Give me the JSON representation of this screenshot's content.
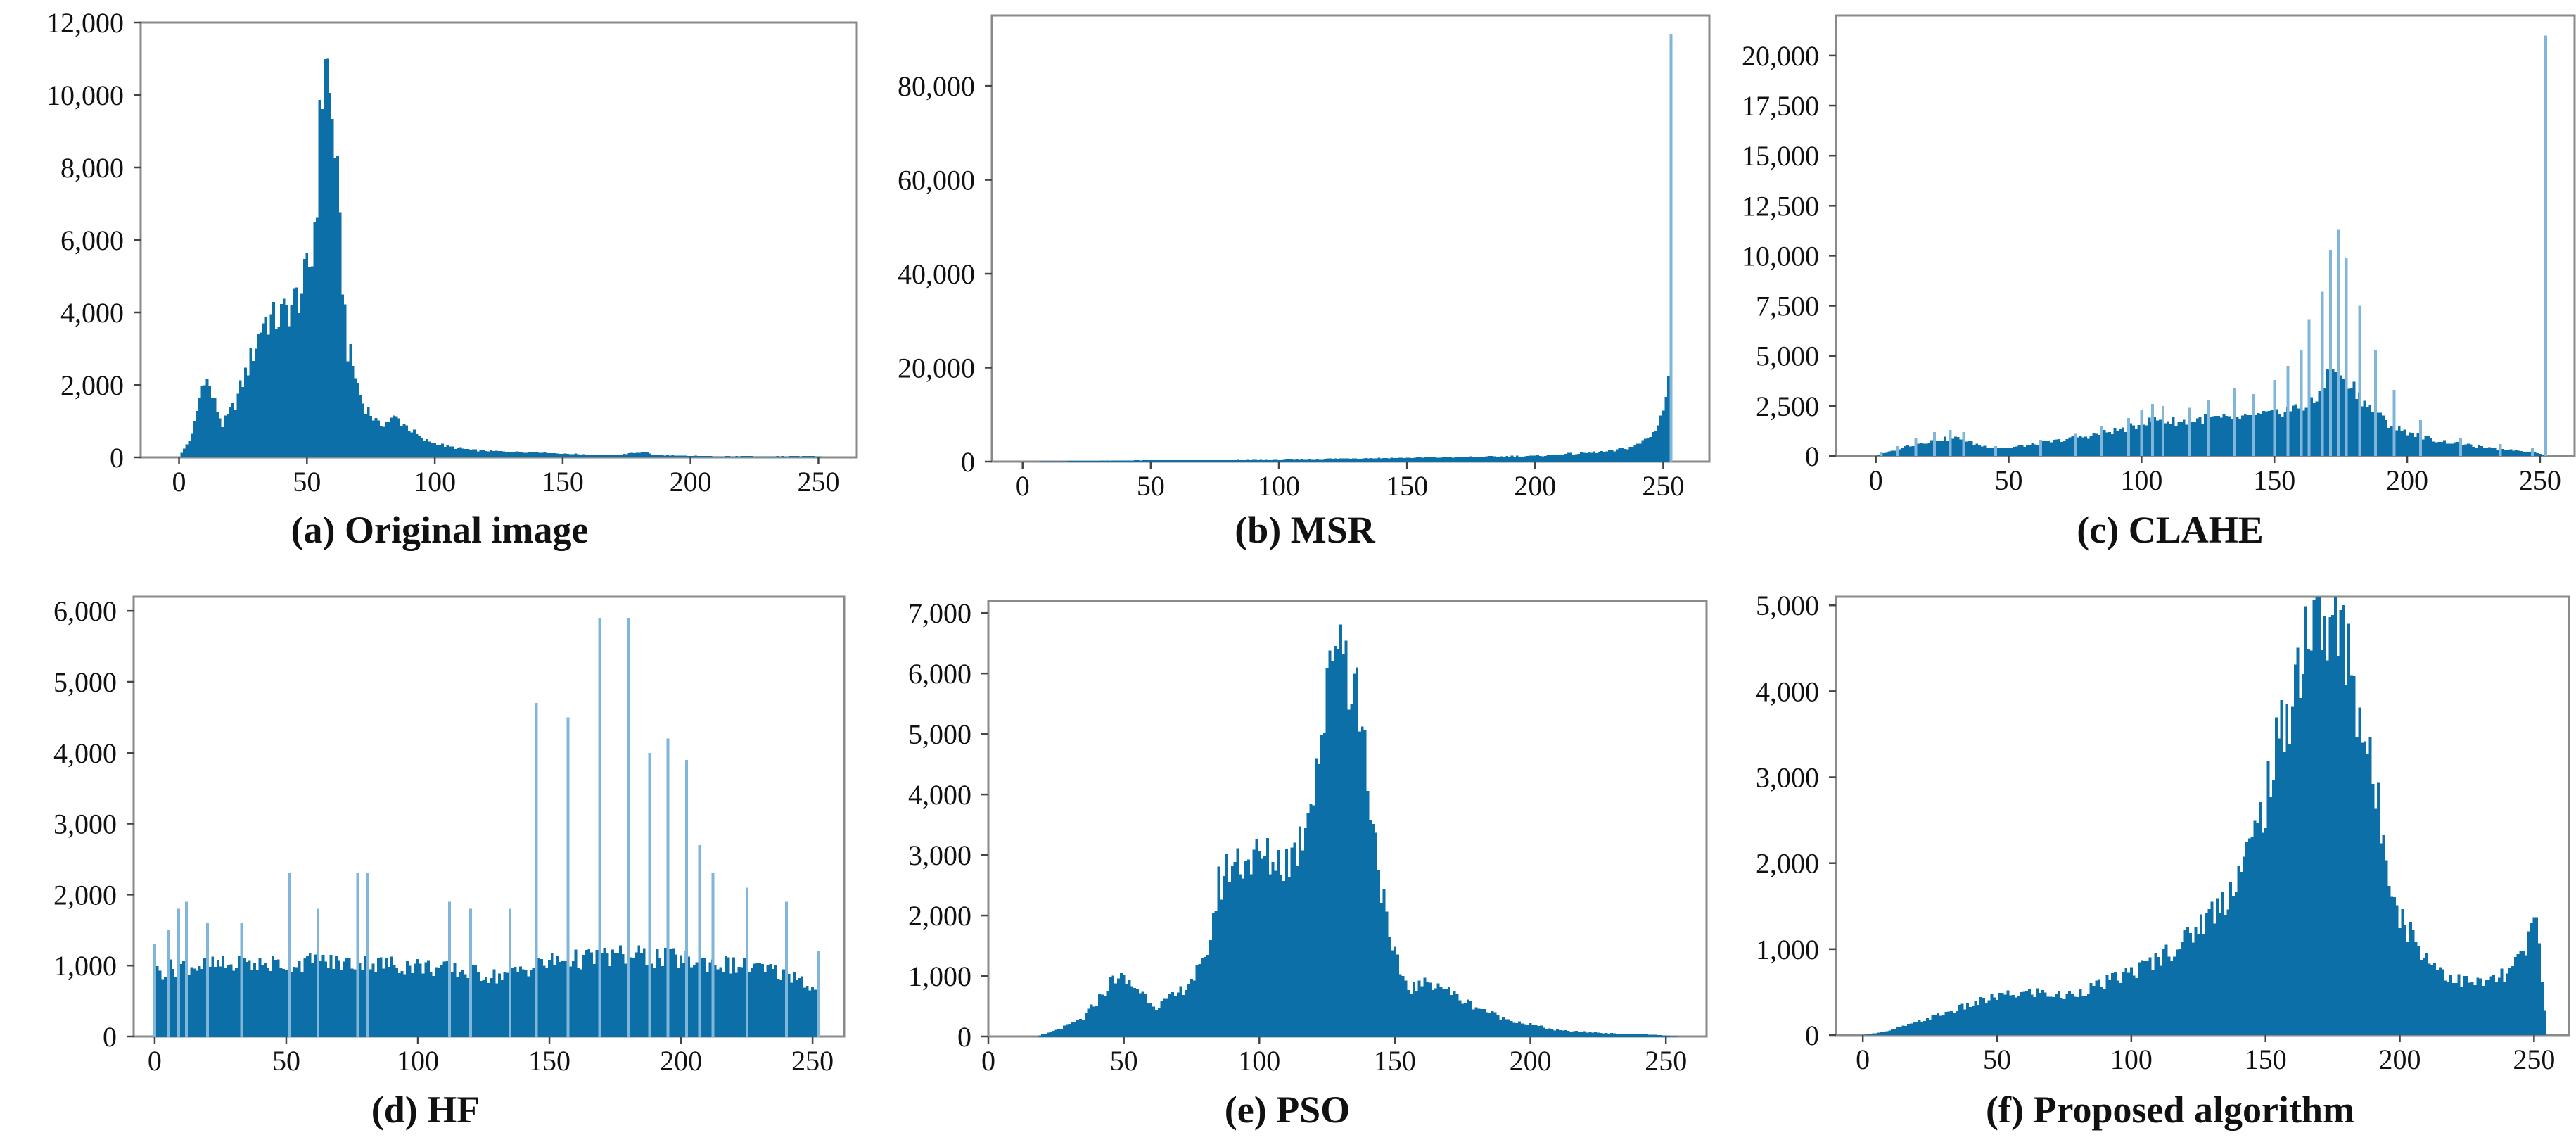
{
  "figure": {
    "bar_color": "#0d6fa8",
    "spike_color": "#7fb6d9"
  },
  "chart_data": [
    {
      "id": "a",
      "type": "bar",
      "title": "(a) Original image",
      "xlabel": "",
      "ylabel": "",
      "xlim": [
        -15,
        265
      ],
      "ylim": [
        0,
        12000
      ],
      "xticks": [
        0,
        50,
        100,
        150,
        200,
        250
      ],
      "xtick_labels": [
        "0",
        "50",
        "100",
        "150",
        "200",
        "250"
      ],
      "yticks": [
        0,
        2000,
        4000,
        6000,
        8000,
        10000,
        12000
      ],
      "ytick_labels": [
        "0",
        "2,000",
        "4,000",
        "6,000",
        "8,000",
        "10,000",
        "12,000"
      ],
      "series": [
        {
          "name": "histogram",
          "profile": [
            [
              0,
              0
            ],
            [
              5,
              600
            ],
            [
              10,
              2300
            ],
            [
              13,
              1700
            ],
            [
              17,
              900
            ],
            [
              22,
              1500
            ],
            [
              28,
              2700
            ],
            [
              33,
              3800
            ],
            [
              38,
              3800
            ],
            [
              43,
              4100
            ],
            [
              48,
              4600
            ],
            [
              52,
              5500
            ],
            [
              54,
              7500
            ],
            [
              56,
              10200
            ],
            [
              57,
              11500
            ],
            [
              59,
              9800
            ],
            [
              61,
              8800
            ],
            [
              63,
              6000
            ],
            [
              66,
              3000
            ],
            [
              72,
              1500
            ],
            [
              78,
              900
            ],
            [
              85,
              1100
            ],
            [
              90,
              800
            ],
            [
              95,
              500
            ],
            [
              105,
              300
            ],
            [
              115,
              200
            ],
            [
              130,
              150
            ],
            [
              140,
              150
            ],
            [
              150,
              100
            ],
            [
              170,
              60
            ],
            [
              182,
              150
            ],
            [
              186,
              60
            ],
            [
              200,
              40
            ],
            [
              230,
              30
            ],
            [
              248,
              40
            ],
            [
              253,
              20
            ],
            [
              255,
              0
            ]
          ],
          "spikes": []
        }
      ]
    },
    {
      "id": "b",
      "type": "bar",
      "title": "(b) MSR",
      "xlabel": "",
      "ylabel": "",
      "xlim": [
        -12,
        268
      ],
      "ylim": [
        0,
        95000
      ],
      "xticks": [
        0,
        50,
        100,
        150,
        200,
        250
      ],
      "xtick_labels": [
        "0",
        "50",
        "100",
        "150",
        "200",
        "250"
      ],
      "yticks": [
        0,
        20000,
        40000,
        60000,
        80000
      ],
      "ytick_labels": [
        "0",
        "20,000",
        "40,000",
        "60,000",
        "80,000"
      ],
      "series": [
        {
          "name": "histogram",
          "profile": [
            [
              0,
              0
            ],
            [
              50,
              300
            ],
            [
              100,
              500
            ],
            [
              150,
              800
            ],
            [
              200,
              1200
            ],
            [
              230,
              2200
            ],
            [
              240,
              3500
            ],
            [
              246,
              6000
            ],
            [
              250,
              11000
            ],
            [
              252,
              17000
            ],
            [
              253,
              0
            ],
            [
              255,
              0
            ]
          ],
          "spikes": [
            [
              253,
              91000
            ]
          ]
        }
      ]
    },
    {
      "id": "c",
      "type": "bar",
      "title": "(c) CLAHE",
      "xlabel": "",
      "ylabel": "",
      "xlim": [
        -15,
        263
      ],
      "ylim": [
        0,
        22000
      ],
      "xticks": [
        0,
        50,
        100,
        150,
        200,
        250
      ],
      "xtick_labels": [
        "0",
        "50",
        "100",
        "150",
        "200",
        "250"
      ],
      "yticks": [
        0,
        2500,
        5000,
        7500,
        10000,
        12500,
        15000,
        17500,
        20000
      ],
      "ytick_labels": [
        "0",
        "2,500",
        "5,000",
        "7,500",
        "10,000",
        "12,500",
        "15,000",
        "17,500",
        "20,000"
      ],
      "series": [
        {
          "name": "histogram",
          "profile": [
            [
              0,
              0
            ],
            [
              5,
              200
            ],
            [
              12,
              500
            ],
            [
              22,
              800
            ],
            [
              30,
              900
            ],
            [
              40,
              500
            ],
            [
              50,
              400
            ],
            [
              65,
              700
            ],
            [
              80,
              1000
            ],
            [
              95,
              1400
            ],
            [
              105,
              1800
            ],
            [
              115,
              1700
            ],
            [
              125,
              1900
            ],
            [
              135,
              1800
            ],
            [
              145,
              2000
            ],
            [
              155,
              2300
            ],
            [
              165,
              2600
            ],
            [
              172,
              4500
            ],
            [
              178,
              3800
            ],
            [
              185,
              2500
            ],
            [
              195,
              1400
            ],
            [
              210,
              800
            ],
            [
              230,
              400
            ],
            [
              248,
              200
            ],
            [
              252,
              0
            ],
            [
              255,
              0
            ]
          ],
          "spikes": [
            [
              2,
              200
            ],
            [
              8,
              500
            ],
            [
              15,
              900
            ],
            [
              22,
              1200
            ],
            [
              28,
              1300
            ],
            [
              33,
              1200
            ],
            [
              45,
              500
            ],
            [
              62,
              800
            ],
            [
              75,
              1100
            ],
            [
              85,
              1500
            ],
            [
              95,
              1900
            ],
            [
              100,
              2300
            ],
            [
              104,
              2600
            ],
            [
              108,
              2500
            ],
            [
              118,
              2400
            ],
            [
              125,
              2800
            ],
            [
              135,
              3400
            ],
            [
              142,
              3100
            ],
            [
              150,
              3800
            ],
            [
              155,
              4500
            ],
            [
              160,
              5300
            ],
            [
              163,
              6800
            ],
            [
              168,
              8200
            ],
            [
              171,
              10300
            ],
            [
              174,
              11300
            ],
            [
              177,
              9900
            ],
            [
              182,
              7500
            ],
            [
              188,
              5300
            ],
            [
              195,
              3300
            ],
            [
              205,
              1800
            ],
            [
              220,
              900
            ],
            [
              235,
              600
            ],
            [
              247,
              400
            ],
            [
              252,
              21000
            ]
          ]
        }
      ]
    },
    {
      "id": "d",
      "type": "bar",
      "title": "(d) HF",
      "xlabel": "",
      "ylabel": "",
      "xlim": [
        -8,
        262
      ],
      "ylim": [
        0,
        6200
      ],
      "xticks": [
        0,
        50,
        100,
        150,
        200,
        250
      ],
      "xtick_labels": [
        "0",
        "50",
        "100",
        "150",
        "200",
        "250"
      ],
      "yticks": [
        0,
        1000,
        2000,
        3000,
        4000,
        5000,
        6000
      ],
      "ytick_labels": [
        "0",
        "1,000",
        "2,000",
        "3,000",
        "4,000",
        "5,000",
        "6,000"
      ],
      "series": [
        {
          "name": "histogram",
          "profile": [
            [
              0,
              900
            ],
            [
              10,
              1000
            ],
            [
              30,
              1000
            ],
            [
              60,
              1050
            ],
            [
              100,
              1000
            ],
            [
              130,
              850
            ],
            [
              150,
              1050
            ],
            [
              180,
              1150
            ],
            [
              210,
              1050
            ],
            [
              230,
              950
            ],
            [
              245,
              850
            ],
            [
              252,
              600
            ],
            [
              253,
              0
            ],
            [
              255,
              0
            ]
          ],
          "spikes": [
            [
              0,
              1300
            ],
            [
              5,
              1500
            ],
            [
              9,
              1800
            ],
            [
              12,
              1900
            ],
            [
              20,
              1600
            ],
            [
              33,
              1600
            ],
            [
              51,
              2300
            ],
            [
              62,
              1800
            ],
            [
              77,
              2300
            ],
            [
              81,
              2300
            ],
            [
              112,
              1900
            ],
            [
              120,
              1800
            ],
            [
              135,
              1800
            ],
            [
              145,
              4700
            ],
            [
              157,
              4500
            ],
            [
              169,
              5900
            ],
            [
              180,
              5900
            ],
            [
              188,
              4000
            ],
            [
              195,
              4200
            ],
            [
              202,
              3900
            ],
            [
              207,
              2700
            ],
            [
              212,
              2300
            ],
            [
              225,
              2100
            ],
            [
              240,
              1900
            ],
            [
              252,
              1200
            ]
          ]
        }
      ]
    },
    {
      "id": "e",
      "type": "bar",
      "title": "(e) PSO",
      "xlabel": "",
      "ylabel": "",
      "xlim": [
        0,
        265
      ],
      "ylim": [
        0,
        7200
      ],
      "xticks": [
        0,
        50,
        100,
        150,
        200,
        250
      ],
      "xtick_labels": [
        "0",
        "50",
        "100",
        "150",
        "200",
        "250"
      ],
      "yticks": [
        0,
        1000,
        2000,
        3000,
        4000,
        5000,
        6000,
        7000
      ],
      "ytick_labels": [
        "0",
        "1,000",
        "2,000",
        "3,000",
        "4,000",
        "5,000",
        "6,000",
        "7,000"
      ],
      "series": [
        {
          "name": "histogram",
          "profile": [
            [
              0,
              0
            ],
            [
              18,
              0
            ],
            [
              25,
              100
            ],
            [
              35,
              300
            ],
            [
              42,
              700
            ],
            [
              47,
              1000
            ],
            [
              55,
              800
            ],
            [
              62,
              500
            ],
            [
              70,
              700
            ],
            [
              80,
              1200
            ],
            [
              85,
              2500
            ],
            [
              90,
              2900
            ],
            [
              100,
              2950
            ],
            [
              110,
              2900
            ],
            [
              115,
              3200
            ],
            [
              120,
              4300
            ],
            [
              125,
              5500
            ],
            [
              128,
              6900
            ],
            [
              131,
              6600
            ],
            [
              134,
              6000
            ],
            [
              137,
              5500
            ],
            [
              142,
              3600
            ],
            [
              148,
              1500
            ],
            [
              155,
              800
            ],
            [
              165,
              900
            ],
            [
              175,
              600
            ],
            [
              190,
              300
            ],
            [
              210,
              100
            ],
            [
              230,
              50
            ],
            [
              245,
              30
            ],
            [
              255,
              0
            ]
          ],
          "spikes": []
        }
      ]
    },
    {
      "id": "f",
      "type": "bar",
      "title": "(f) Proposed algorithm",
      "xlabel": "",
      "ylabel": "",
      "xlim": [
        -10,
        263
      ],
      "ylim": [
        0,
        5100
      ],
      "xticks": [
        0,
        50,
        100,
        150,
        200,
        250
      ],
      "xtick_labels": [
        "0",
        "50",
        "100",
        "150",
        "200",
        "250"
      ],
      "yticks": [
        0,
        1000,
        2000,
        3000,
        4000,
        5000
      ],
      "ytick_labels": [
        "0",
        "1,000",
        "2,000",
        "3,000",
        "4,000",
        "5,000"
      ],
      "series": [
        {
          "name": "histogram",
          "profile": [
            [
              0,
              0
            ],
            [
              10,
              50
            ],
            [
              20,
              150
            ],
            [
              35,
              300
            ],
            [
              50,
              450
            ],
            [
              65,
              500
            ],
            [
              75,
              450
            ],
            [
              90,
              600
            ],
            [
              105,
              800
            ],
            [
              120,
              1100
            ],
            [
              135,
              1600
            ],
            [
              145,
              2200
            ],
            [
              152,
              3000
            ],
            [
              160,
              4000
            ],
            [
              165,
              4700
            ],
            [
              170,
              4850
            ],
            [
              175,
              4700
            ],
            [
              180,
              4600
            ],
            [
              185,
              3800
            ],
            [
              192,
              2600
            ],
            [
              200,
              1400
            ],
            [
              210,
              900
            ],
            [
              220,
              650
            ],
            [
              230,
              600
            ],
            [
              240,
              700
            ],
            [
              247,
              1000
            ],
            [
              251,
              1400
            ],
            [
              253,
              600
            ],
            [
              255,
              0
            ]
          ],
          "spikes": []
        }
      ]
    }
  ]
}
